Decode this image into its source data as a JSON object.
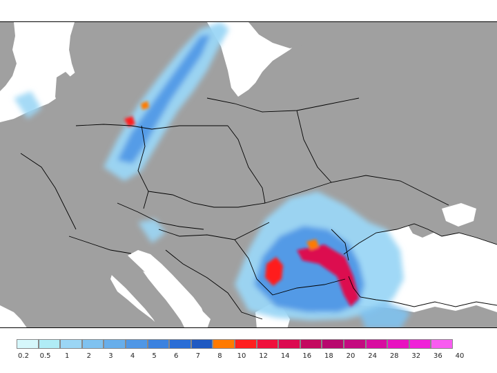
{
  "legend": {
    "ticks": [
      "0.2",
      "0.5",
      "1",
      "2",
      "3",
      "4",
      "5",
      "6",
      "7",
      "8",
      "10",
      "12",
      "14",
      "16",
      "18",
      "20",
      "24",
      "28",
      "32",
      "36",
      "40"
    ],
    "colors": [
      "#d6f7fb",
      "#b0ecf6",
      "#9bd6f5",
      "#7fc2f0",
      "#67aeeb",
      "#4f97e6",
      "#3b82e0",
      "#2a6dd6",
      "#1f59c2",
      "#ff7a00",
      "#ff1f1f",
      "#f0103c",
      "#dc0a50",
      "#c40a60",
      "#b8086e",
      "#c40a80",
      "#d80ca0",
      "#e812c0",
      "#f020d8",
      "#f85cf0"
    ]
  },
  "map": {
    "land_color": "#a0a0a0",
    "sea_color": "#ffffff",
    "border_color": "#000000"
  }
}
